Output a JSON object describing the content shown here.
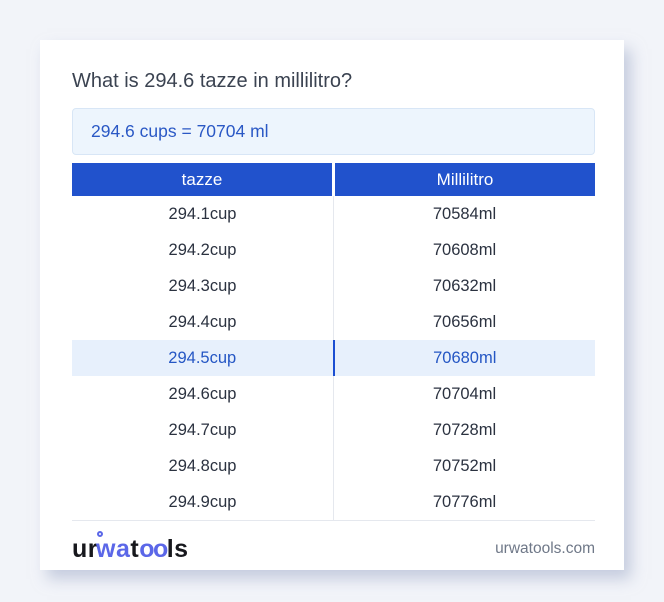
{
  "page": {
    "title": "What is 294.6 tazze in millilitro?"
  },
  "result": {
    "text": "294.6 cups = 70704 ml"
  },
  "table": {
    "headers": [
      "tazze",
      "Millilitro"
    ],
    "rows": [
      {
        "cup": "294.1cup",
        "ml": "70584ml",
        "highlighted": false
      },
      {
        "cup": "294.2cup",
        "ml": "70608ml",
        "highlighted": false
      },
      {
        "cup": "294.3cup",
        "ml": "70632ml",
        "highlighted": false
      },
      {
        "cup": "294.4cup",
        "ml": "70656ml",
        "highlighted": false
      },
      {
        "cup": "294.5cup",
        "ml": "70680ml",
        "highlighted": true
      },
      {
        "cup": "294.6cup",
        "ml": "70704ml",
        "highlighted": false
      },
      {
        "cup": "294.7cup",
        "ml": "70728ml",
        "highlighted": false
      },
      {
        "cup": "294.8cup",
        "ml": "70752ml",
        "highlighted": false
      },
      {
        "cup": "294.9cup",
        "ml": "70776ml",
        "highlighted": false
      }
    ]
  },
  "footer": {
    "logo": {
      "part_ur": "ur",
      "part_wa": "wa",
      "part_t": "t",
      "part_oo": "oo",
      "part_ls": "ls"
    },
    "site": "urwatools.com"
  },
  "colors": {
    "header_blue": "#2152cc",
    "highlight_bg": "#e7f0fc",
    "link_blue": "#2a58c5",
    "logo_blue": "#5b67e8",
    "page_bg": "#f2f4f9"
  }
}
